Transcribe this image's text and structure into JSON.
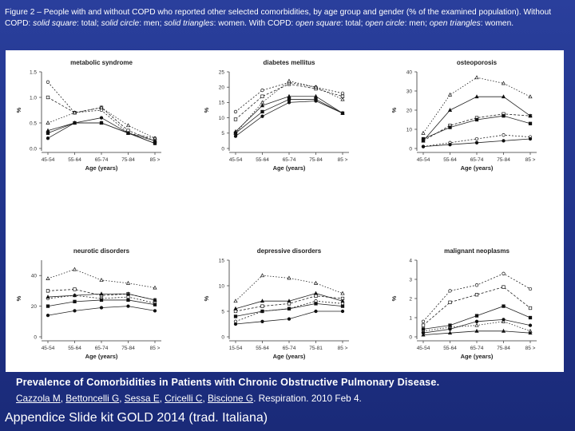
{
  "caption": {
    "part1": "Figure 2 – People with and without COPD who reported other selected comorbidities, by age group and gender (% of the examined population). Without COPD: ",
    "solid_square": "solid square",
    "sep_total": ": total; ",
    "solid_circle": "solid circle",
    "sep_men": ": men; ",
    "solid_triangles": "solid triangles",
    "sep_women": ": women. With COPD: ",
    "open_square": "open square",
    "sep_total2": ": total; ",
    "open_circle": "open circle",
    "sep_men2": ": men; ",
    "open_triangles": "open triangles",
    "sep_women2": ": women."
  },
  "citation": {
    "title": "Prevalence of Comorbidities in Patients with Chronic Obstructive Pulmonary Disease.",
    "authors": [
      "Cazzola M",
      "Bettoncelli G",
      "Sessa E",
      "Cricelli C",
      "Biscione G"
    ],
    "journal": "Respiration. 2010 Feb 4."
  },
  "footer": "Appendice Slide kit GOLD 2014 (trad. Italiana)",
  "chart_data": [
    {
      "type": "line",
      "title": "metabolic syndrome",
      "xlabel": "Age (years)",
      "ylabel": "%",
      "categories": [
        "45-54",
        "55-64",
        "65-74",
        "75-84",
        "85 >"
      ],
      "ylim": [
        0,
        1.5
      ],
      "yticks": [
        "0.0",
        "0.5",
        "1.0",
        "1.5"
      ],
      "series": [
        {
          "name": "COPD total",
          "marker": "open-square",
          "values": [
            1.0,
            0.7,
            0.8,
            0.35,
            0.15
          ]
        },
        {
          "name": "COPD men",
          "marker": "open-circle",
          "values": [
            1.3,
            0.7,
            0.75,
            0.3,
            0.2
          ]
        },
        {
          "name": "COPD women",
          "marker": "open-triangle",
          "values": [
            0.5,
            0.7,
            0.8,
            0.45,
            0.2
          ]
        },
        {
          "name": "No COPD total",
          "marker": "solid-square",
          "values": [
            0.3,
            0.5,
            0.5,
            0.3,
            0.1
          ]
        },
        {
          "name": "No COPD men",
          "marker": "solid-circle",
          "values": [
            0.2,
            0.5,
            0.6,
            0.3,
            0.1
          ]
        },
        {
          "name": "No COPD women",
          "marker": "solid-triangle",
          "values": [
            0.35,
            0.5,
            0.5,
            0.3,
            0.15
          ]
        }
      ]
    },
    {
      "type": "line",
      "title": "diabetes mellitus",
      "xlabel": "Age (years)",
      "ylabel": "%",
      "categories": [
        "45-54",
        "55-64",
        "65-74",
        "75-84",
        "85 >"
      ],
      "ylim": [
        0,
        25
      ],
      "yticks": [
        "0",
        "5",
        "10",
        "15",
        "20",
        "25"
      ],
      "series": [
        {
          "name": "COPD total",
          "marker": "open-square",
          "values": [
            9.5,
            17,
            21,
            19.5,
            17
          ]
        },
        {
          "name": "COPD men",
          "marker": "open-circle",
          "values": [
            12,
            19,
            21.5,
            20,
            18
          ]
        },
        {
          "name": "COPD women",
          "marker": "open-triangle",
          "values": [
            5,
            15,
            22,
            20,
            16
          ]
        },
        {
          "name": "No COPD total",
          "marker": "solid-square",
          "values": [
            5,
            12,
            16,
            16,
            11.5
          ]
        },
        {
          "name": "No COPD men",
          "marker": "solid-circle",
          "values": [
            4,
            10.5,
            15,
            15.5,
            11.5
          ]
        },
        {
          "name": "No COPD women",
          "marker": "solid-triangle",
          "values": [
            5.5,
            14,
            17,
            17,
            11.5
          ]
        }
      ]
    },
    {
      "type": "line",
      "title": "osteoporosis",
      "xlabel": "Age (years)",
      "ylabel": "%",
      "categories": [
        "45-54",
        "55-64",
        "65-74",
        "75-84",
        "85 >"
      ],
      "ylim": [
        0,
        40
      ],
      "yticks": [
        "0",
        "10",
        "20",
        "30",
        "40"
      ],
      "series": [
        {
          "name": "COPD total",
          "marker": "open-square",
          "values": [
            4,
            12,
            16,
            18,
            17
          ]
        },
        {
          "name": "COPD men",
          "marker": "open-circle",
          "values": [
            1,
            3,
            5,
            7,
            6
          ]
        },
        {
          "name": "COPD women",
          "marker": "open-triangle",
          "values": [
            8,
            28,
            37,
            34,
            27
          ]
        },
        {
          "name": "No COPD total",
          "marker": "solid-square",
          "values": [
            5,
            11,
            15,
            17,
            13
          ]
        },
        {
          "name": "No COPD men",
          "marker": "solid-circle",
          "values": [
            1,
            2,
            3,
            4,
            5
          ]
        },
        {
          "name": "No COPD women",
          "marker": "solid-triangle",
          "values": [
            4,
            20,
            27,
            27,
            17
          ]
        }
      ]
    },
    {
      "type": "line",
      "title": "neurotic disorders",
      "xlabel": "Age (years)",
      "ylabel": "%",
      "categories": [
        "45-54",
        "55-64",
        "65-74",
        "75-84",
        "85 >"
      ],
      "ylim": [
        0,
        50
      ],
      "yticks": [
        "0",
        "20",
        "40"
      ],
      "series": [
        {
          "name": "COPD total",
          "marker": "open-square",
          "values": [
            30,
            31,
            27,
            28,
            24
          ]
        },
        {
          "name": "COPD men",
          "marker": "open-circle",
          "values": [
            25,
            27,
            25,
            26,
            22
          ]
        },
        {
          "name": "COPD women",
          "marker": "open-triangle",
          "values": [
            38,
            44,
            37,
            35,
            32
          ]
        },
        {
          "name": "No COPD total",
          "marker": "solid-square",
          "values": [
            20,
            23,
            24,
            24,
            21
          ]
        },
        {
          "name": "No COPD men",
          "marker": "solid-circle",
          "values": [
            14,
            17,
            19,
            20,
            17
          ]
        },
        {
          "name": "No COPD women",
          "marker": "solid-triangle",
          "values": [
            26,
            27,
            28,
            28,
            24
          ]
        }
      ]
    },
    {
      "type": "line",
      "title": "depressive disorders",
      "xlabel": "Age (years)",
      "ylabel": "%",
      "categories": [
        "15-54",
        "55-64",
        "65-74",
        "75-81",
        "85 >"
      ],
      "ylim": [
        0,
        15
      ],
      "yticks": [
        "0",
        "5",
        "10",
        "15"
      ],
      "series": [
        {
          "name": "COPD total",
          "marker": "open-square",
          "values": [
            5,
            6,
            6.5,
            8,
            7.5
          ]
        },
        {
          "name": "COPD men",
          "marker": "open-circle",
          "values": [
            3,
            5,
            5.5,
            7,
            6.5
          ]
        },
        {
          "name": "COPD women",
          "marker": "open-triangle",
          "values": [
            7,
            12,
            11.5,
            10.5,
            8.5
          ]
        },
        {
          "name": "No COPD total",
          "marker": "solid-square",
          "values": [
            4,
            5,
            5.5,
            6.5,
            6
          ]
        },
        {
          "name": "No COPD men",
          "marker": "solid-circle",
          "values": [
            2.5,
            3,
            3.5,
            5,
            5
          ]
        },
        {
          "name": "No COPD women",
          "marker": "solid-triangle",
          "values": [
            5.5,
            7,
            7,
            8.5,
            7
          ]
        }
      ]
    },
    {
      "type": "line",
      "title": "malignant neoplasms",
      "xlabel": "Age (years)",
      "ylabel": "%",
      "categories": [
        "45-54",
        "55-64",
        "65-74",
        "75-84",
        "85 >"
      ],
      "ylim": [
        0,
        4
      ],
      "yticks": [
        "0",
        "1",
        "2",
        "3",
        "4"
      ],
      "series": [
        {
          "name": "COPD total",
          "marker": "open-square",
          "values": [
            0.6,
            1.8,
            2.2,
            2.6,
            1.5
          ]
        },
        {
          "name": "COPD men",
          "marker": "open-circle",
          "values": [
            0.8,
            2.4,
            2.7,
            3.3,
            2.5
          ]
        },
        {
          "name": "COPD women",
          "marker": "open-triangle",
          "values": [
            0.3,
            0.5,
            0.6,
            0.8,
            0.3
          ]
        },
        {
          "name": "No COPD total",
          "marker": "solid-square",
          "values": [
            0.4,
            0.6,
            1.1,
            1.6,
            1.0
          ]
        },
        {
          "name": "No COPD men",
          "marker": "solid-circle",
          "values": [
            0.2,
            0.4,
            0.8,
            0.9,
            0.6
          ]
        },
        {
          "name": "No COPD women",
          "marker": "solid-triangle",
          "values": [
            0.1,
            0.2,
            0.3,
            0.3,
            0.2
          ]
        }
      ]
    }
  ]
}
